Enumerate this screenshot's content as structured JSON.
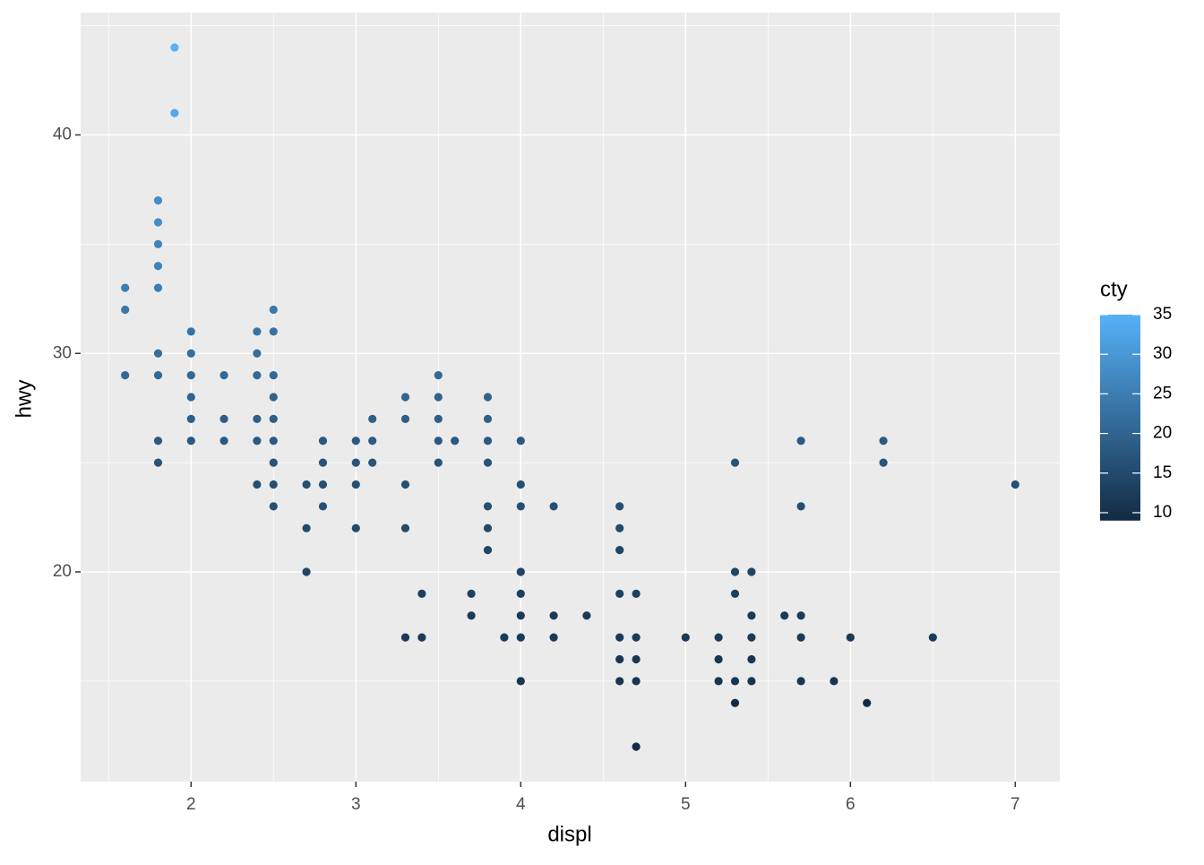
{
  "chart_data": {
    "type": "scatter",
    "x_label": "displ",
    "y_label": "hwy",
    "x": [
      1.6,
      1.6,
      1.6,
      1.8,
      1.8,
      1.8,
      1.8,
      1.8,
      1.8,
      1.8,
      1.8,
      1.8,
      1.9,
      1.9,
      2.0,
      2.0,
      2.0,
      2.0,
      2.0,
      2.0,
      2.2,
      2.2,
      2.2,
      2.4,
      2.4,
      2.4,
      2.4,
      2.4,
      2.4,
      2.5,
      2.5,
      2.5,
      2.5,
      2.5,
      2.5,
      2.5,
      2.5,
      2.5,
      2.7,
      2.7,
      2.7,
      2.8,
      2.8,
      2.8,
      2.8,
      3.0,
      3.0,
      3.0,
      3.0,
      3.1,
      3.1,
      3.1,
      3.3,
      3.3,
      3.3,
      3.3,
      3.3,
      3.4,
      3.4,
      3.5,
      3.5,
      3.5,
      3.5,
      3.5,
      3.6,
      3.7,
      3.7,
      3.8,
      3.8,
      3.8,
      3.8,
      3.8,
      3.8,
      3.8,
      3.9,
      4.0,
      4.0,
      4.0,
      4.0,
      4.0,
      4.0,
      4.0,
      4.0,
      4.2,
      4.2,
      4.2,
      4.4,
      4.6,
      4.6,
      4.6,
      4.6,
      4.6,
      4.6,
      4.6,
      4.7,
      4.7,
      4.7,
      4.7,
      4.7,
      5.0,
      5.2,
      5.2,
      5.2,
      5.3,
      5.3,
      5.3,
      5.3,
      5.3,
      5.4,
      5.4,
      5.4,
      5.4,
      5.4,
      5.6,
      5.7,
      5.7,
      5.7,
      5.7,
      5.7,
      5.9,
      6.0,
      6.1,
      6.2,
      6.2,
      6.5,
      7.0
    ],
    "y": [
      33,
      32,
      29,
      37,
      36,
      35,
      34,
      33,
      30,
      29,
      26,
      25,
      44,
      41,
      31,
      30,
      29,
      28,
      27,
      26,
      29,
      27,
      26,
      31,
      30,
      29,
      27,
      26,
      24,
      32,
      31,
      29,
      28,
      27,
      26,
      25,
      24,
      23,
      24,
      22,
      20,
      26,
      25,
      24,
      23,
      26,
      25,
      24,
      22,
      27,
      26,
      25,
      28,
      27,
      24,
      22,
      17,
      19,
      17,
      29,
      28,
      27,
      26,
      25,
      26,
      19,
      18,
      28,
      27,
      26,
      25,
      23,
      22,
      21,
      17,
      26,
      24,
      23,
      20,
      19,
      18,
      17,
      15,
      23,
      18,
      17,
      18,
      23,
      22,
      21,
      19,
      17,
      16,
      15,
      19,
      17,
      16,
      15,
      12,
      17,
      17,
      16,
      15,
      25,
      20,
      19,
      15,
      14,
      20,
      18,
      17,
      16,
      15,
      18,
      26,
      23,
      18,
      17,
      15,
      15,
      17,
      14,
      26,
      25,
      17,
      24
    ],
    "color_values": [
      25,
      24,
      21,
      28,
      28,
      26,
      26,
      25,
      22,
      21,
      18,
      17,
      35,
      33,
      23,
      22,
      21,
      20,
      19,
      18,
      21,
      19,
      18,
      23,
      22,
      21,
      19,
      18,
      16,
      24,
      23,
      21,
      20,
      19,
      18,
      17,
      16,
      16,
      16,
      15,
      14,
      18,
      17,
      16,
      16,
      18,
      17,
      16,
      15,
      19,
      18,
      17,
      20,
      19,
      16,
      15,
      12,
      13,
      12,
      21,
      20,
      19,
      18,
      17,
      18,
      13,
      12,
      20,
      19,
      18,
      17,
      16,
      15,
      14,
      12,
      18,
      16,
      16,
      14,
      13,
      12,
      12,
      11,
      16,
      12,
      12,
      12,
      16,
      15,
      14,
      13,
      12,
      11,
      11,
      13,
      12,
      11,
      11,
      9,
      12,
      12,
      11,
      11,
      17,
      14,
      13,
      11,
      9,
      14,
      12,
      12,
      11,
      11,
      12,
      18,
      16,
      12,
      12,
      11,
      11,
      12,
      9,
      18,
      17,
      12,
      16
    ],
    "xlim": [
      1.33,
      7.27
    ],
    "ylim": [
      10.4,
      45.6
    ],
    "xticks": [
      2,
      3,
      4,
      5,
      6,
      7
    ],
    "yticks": [
      20,
      30,
      40
    ],
    "xminor": [
      1.5,
      2.5,
      3.5,
      4.5,
      5.5,
      6.5
    ],
    "yminor": [
      15,
      25,
      35,
      45
    ],
    "colorbar": {
      "title": "cty",
      "lim": [
        9,
        35
      ],
      "ticks": [
        10,
        15,
        20,
        25,
        30,
        35
      ],
      "low": "#132B43",
      "high": "#56B1F7"
    }
  }
}
